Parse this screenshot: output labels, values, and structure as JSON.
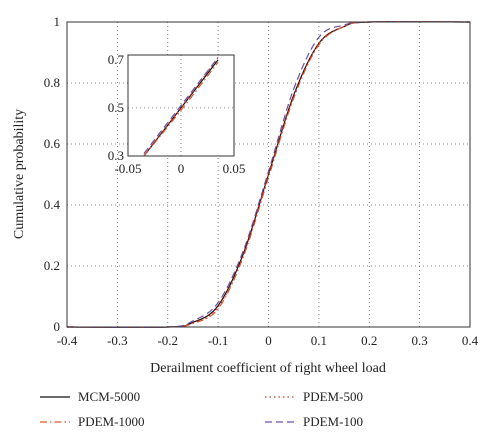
{
  "chart_data": {
    "type": "line",
    "title": "",
    "xlabel": "Derailment coefficient of right wheel load",
    "ylabel": "Cumulative probability",
    "xlim": [
      -0.4,
      0.4
    ],
    "ylim": [
      0,
      1
    ],
    "xticks": [
      "-0.4",
      "-0.3",
      "-0.2",
      "-0.1",
      "0",
      "0.1",
      "0.2",
      "0.3",
      "0.4"
    ],
    "yticks": [
      "0",
      "0.2",
      "0.4",
      "0.6",
      "0.8",
      "1"
    ],
    "grid": true,
    "legend_position": "bottom, outside plot (2 columns)",
    "x": [
      -0.4,
      -0.2,
      -0.15,
      -0.1,
      -0.05,
      0,
      0.05,
      0.1,
      0.15,
      0.2,
      0.4
    ],
    "series": [
      {
        "name": "MCM-5000",
        "color": "#111111",
        "style": "solid",
        "values": [
          0,
          0,
          0.015,
          0.07,
          0.24,
          0.5,
          0.76,
          0.93,
          0.985,
          1,
          1
        ]
      },
      {
        "name": "PDEM-1000",
        "color": "#e2572c",
        "style": "dashdot",
        "values": [
          0,
          0,
          0.012,
          0.06,
          0.23,
          0.49,
          0.75,
          0.925,
          0.985,
          1,
          1
        ]
      },
      {
        "name": "PDEM-500",
        "color": "#d6322a",
        "style": "dotted",
        "values": [
          0,
          0,
          0.013,
          0.065,
          0.235,
          0.5,
          0.755,
          0.93,
          0.985,
          1,
          1
        ]
      },
      {
        "name": "PDEM-100",
        "color": "#6a4fa3",
        "style": "dashed",
        "values": [
          0,
          0,
          0.02,
          0.08,
          0.25,
          0.51,
          0.78,
          0.95,
          0.99,
          1,
          1
        ]
      }
    ],
    "inset": {
      "xlim": [
        -0.05,
        0.05
      ],
      "ylim": [
        0.3,
        0.72
      ],
      "xticks": [
        "-0.05",
        "0",
        "0.05"
      ],
      "yticks": [
        "0.3",
        "0.5",
        "0.7"
      ],
      "x": [
        -0.035,
        0,
        0.035
      ],
      "series_values": [
        [
          0.3,
          0.5,
          0.7
        ],
        [
          0.3,
          0.49,
          0.69
        ],
        [
          0.3,
          0.5,
          0.71
        ],
        [
          0.31,
          0.51,
          0.71
        ]
      ]
    }
  }
}
